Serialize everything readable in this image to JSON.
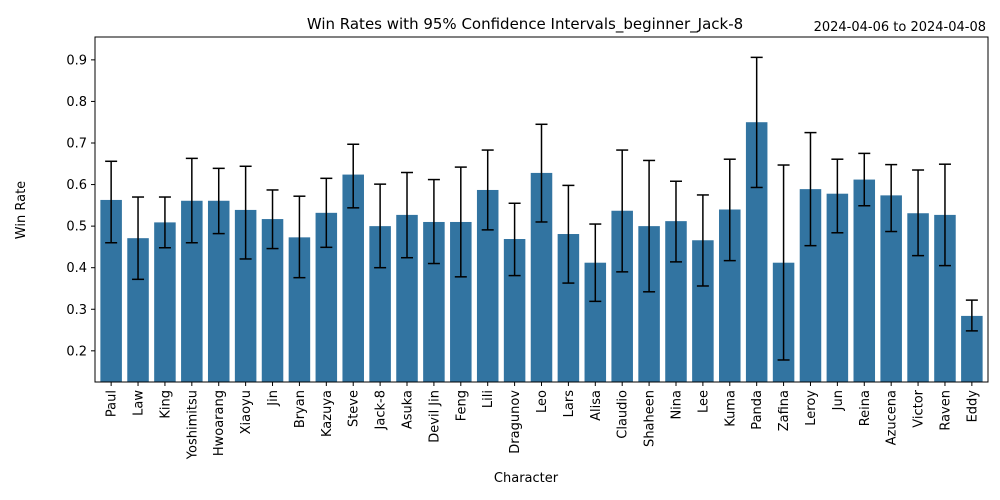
{
  "chart_data": {
    "type": "bar",
    "title": "Win Rates with 95% Confidence Intervals_beginner_Jack-8",
    "subtitle": "2024-04-06 to 2024-04-08",
    "xlabel": "Character",
    "ylabel": "Win Rate",
    "ylim": [
      0.125,
      0.955
    ],
    "yticks": [
      0.2,
      0.3,
      0.4,
      0.5,
      0.6,
      0.7,
      0.8,
      0.9
    ],
    "ytick_labels": [
      "0.2",
      "0.3",
      "0.4",
      "0.5",
      "0.6",
      "0.7",
      "0.8",
      "0.9"
    ],
    "grid": false,
    "bar_color": "#3274a1",
    "errorbar_color": "#000000",
    "categories": [
      "Paul",
      "Law",
      "King",
      "Yoshimitsu",
      "Hwoarang",
      "Xiaoyu",
      "Jin",
      "Bryan",
      "Kazuya",
      "Steve",
      "Jack-8",
      "Asuka",
      "Devil Jin",
      "Feng",
      "Lili",
      "Dragunov",
      "Leo",
      "Lars",
      "Alisa",
      "Claudio",
      "Shaheen",
      "Nina",
      "Lee",
      "Kuma",
      "Panda",
      "Zafina",
      "Leroy",
      "Jun",
      "Reina",
      "Azucena",
      "Victor",
      "Raven",
      "Eddy"
    ],
    "values": [
      0.563,
      0.471,
      0.509,
      0.561,
      0.561,
      0.539,
      0.517,
      0.473,
      0.532,
      0.624,
      0.5,
      0.527,
      0.51,
      0.51,
      0.587,
      0.469,
      0.628,
      0.481,
      0.412,
      0.537,
      0.5,
      0.512,
      0.466,
      0.54,
      0.75,
      0.412,
      0.589,
      0.578,
      0.612,
      0.574,
      0.531,
      0.527,
      0.284
    ],
    "ci_low": [
      0.46,
      0.372,
      0.448,
      0.46,
      0.482,
      0.421,
      0.446,
      0.376,
      0.449,
      0.544,
      0.4,
      0.424,
      0.41,
      0.378,
      0.491,
      0.381,
      0.51,
      0.363,
      0.319,
      0.39,
      0.342,
      0.414,
      0.356,
      0.417,
      0.593,
      0.178,
      0.453,
      0.484,
      0.549,
      0.487,
      0.429,
      0.405,
      0.248
    ],
    "ci_high": [
      0.656,
      0.57,
      0.57,
      0.663,
      0.639,
      0.644,
      0.587,
      0.572,
      0.615,
      0.697,
      0.601,
      0.629,
      0.612,
      0.642,
      0.683,
      0.555,
      0.745,
      0.598,
      0.505,
      0.683,
      0.658,
      0.608,
      0.575,
      0.661,
      0.906,
      0.647,
      0.725,
      0.661,
      0.675,
      0.648,
      0.635,
      0.649,
      0.322
    ]
  }
}
